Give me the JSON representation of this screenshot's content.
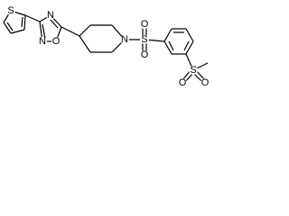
{
  "atoms": [
    {
      "label": "S"
    },
    {
      "label": "N"
    },
    {
      "label": "N"
    },
    {
      "label": "O"
    },
    {
      "label": "N"
    },
    {
      "label": "S"
    },
    {
      "label": "O"
    },
    {
      "label": "O"
    },
    {
      "label": "S"
    },
    {
      "label": "O"
    },
    {
      "label": "O"
    }
  ]
}
